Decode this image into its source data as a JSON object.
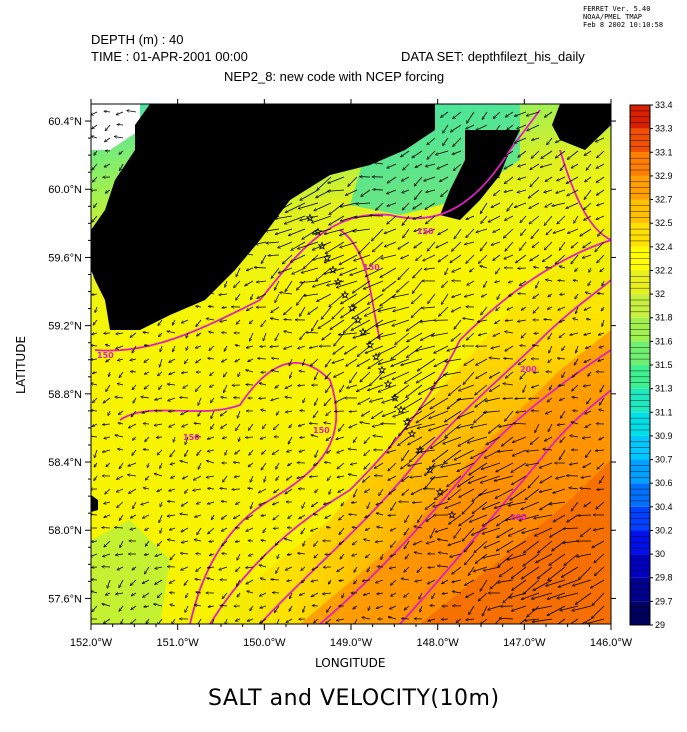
{
  "ferret": {
    "line1": "FERRET Ver. 5.40",
    "line2": "NOAA/PMEL TMAP",
    "line3": "Feb  8 2002 10:10:58"
  },
  "header": {
    "depth": "DEPTH (m) : 40",
    "time": "TIME : 01-APR-2001 00:00",
    "dataset": "DATA SET: depthfilezt_his_daily",
    "subtitle": "NEP2_8: new code with NCEP forcing"
  },
  "chart_data": {
    "type": "heatmap",
    "title": "SALT and VELOCITY(10m)",
    "xlabel": "LONGITUDE",
    "ylabel": "LATITUDE",
    "xlim": [
      -152.0,
      -146.0
    ],
    "ylim": [
      57.45,
      60.5
    ],
    "x_ticks": [
      {
        "v": -152.0,
        "label": "152.0°W"
      },
      {
        "v": -151.0,
        "label": "151.0°W"
      },
      {
        "v": -150.0,
        "label": "150.0°W"
      },
      {
        "v": -149.0,
        "label": "149.0°W"
      },
      {
        "v": -148.0,
        "label": "148.0°W"
      },
      {
        "v": -147.0,
        "label": "147.0°W"
      },
      {
        "v": -146.0,
        "label": "146.0°W"
      }
    ],
    "y_ticks": [
      {
        "v": 57.6,
        "label": "57.6°N"
      },
      {
        "v": 58.0,
        "label": "58.0°N"
      },
      {
        "v": 58.4,
        "label": "58.4°N"
      },
      {
        "v": 58.8,
        "label": "58.8°N"
      },
      {
        "v": 59.2,
        "label": "59.2°N"
      },
      {
        "v": 59.6,
        "label": "59.6°N"
      },
      {
        "v": 60.0,
        "label": "60.0°N"
      },
      {
        "v": 60.4,
        "label": "60.4°N"
      }
    ],
    "colorbar": {
      "levels": [
        "29",
        "29.7",
        "29.8",
        "30",
        "30.2",
        "30.4",
        "30.6",
        "30.7",
        "30.9",
        "31.1",
        "31.3",
        "31.5",
        "31.6",
        "31.8",
        "32",
        "32.2",
        "32.4",
        "32.5",
        "32.7",
        "32.9",
        "33.1",
        "33.3",
        "33.4"
      ],
      "colors": [
        "#000060",
        "#000090",
        "#0000c0",
        "#0010e8",
        "#0040ff",
        "#0070ff",
        "#00a0ff",
        "#00c8ff",
        "#00e0e8",
        "#20e8c0",
        "#40f090",
        "#70f070",
        "#a0f050",
        "#c8f040",
        "#e8f020",
        "#ffff00",
        "#ffe000",
        "#ffc000",
        "#ffa000",
        "#ff8000",
        "#f05000",
        "#d82000",
        "#c00000"
      ],
      "cell_colors_note": ""
    },
    "contour_labels": [
      "150",
      "150",
      "150",
      "150",
      "150",
      "200",
      "200"
    ],
    "salinity_field": [
      {
        "lon": -151.5,
        "lat": 59.0,
        "salt": 32.2
      },
      {
        "lon": -149.5,
        "lat": 59.6,
        "salt": 31.9
      },
      {
        "lon": -148.5,
        "lat": 60.1,
        "salt": 31.3
      },
      {
        "lon": -150.5,
        "lat": 58.4,
        "salt": 32.3
      },
      {
        "lon": -147.0,
        "lat": 59.0,
        "salt": 32.6
      },
      {
        "lon": -146.5,
        "lat": 58.0,
        "salt": 33.0
      }
    ]
  }
}
